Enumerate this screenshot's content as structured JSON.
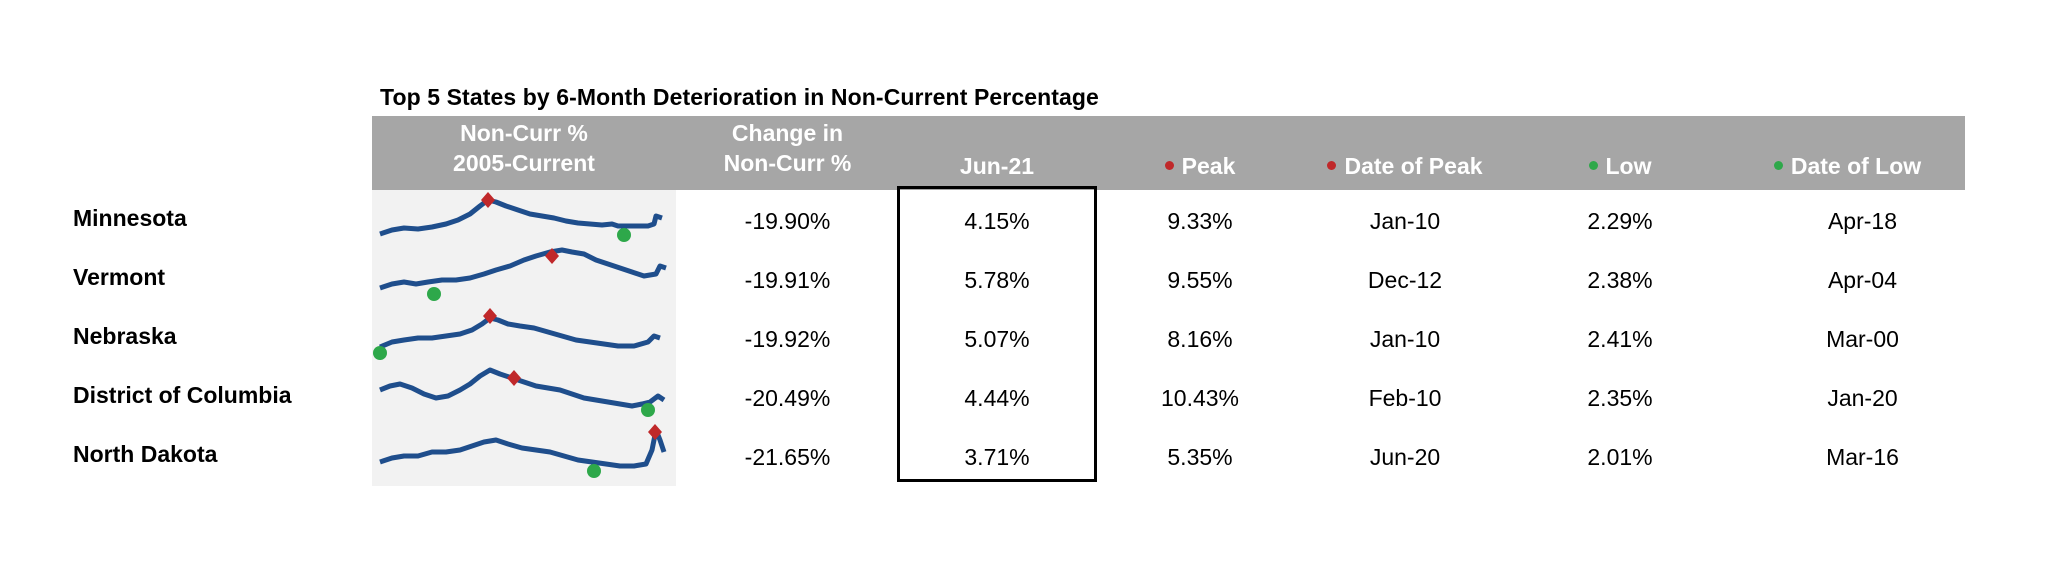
{
  "title": "Top 5 States by 6-Month Deterioration in Non-Current Percentage",
  "headers": {
    "sparkline": [
      "Non-Curr %",
      "2005-Current"
    ],
    "change": [
      "Change in",
      "Non-Curr %"
    ],
    "current": "Jun-21",
    "peak": "Peak",
    "date_of_peak": "Date of Peak",
    "low": "Low",
    "date_of_low": "Date of Low"
  },
  "colors": {
    "header_bg": "#a6a6a6",
    "sparkline_line": "#1f4e8c",
    "peak_marker": "#c0282a",
    "low_marker": "#2ea84a",
    "sparkline_bg": "#f2f2f2"
  },
  "rows": [
    {
      "state": "Minnesota",
      "change": "-19.90%",
      "current": "4.15%",
      "peak": "9.33%",
      "date_of_peak": "Jan-10",
      "low": "2.29%",
      "date_of_low": "Apr-18"
    },
    {
      "state": "Vermont",
      "change": "-19.91%",
      "current": "5.78%",
      "peak": "9.55%",
      "date_of_peak": "Dec-12",
      "low": "2.38%",
      "date_of_low": "Apr-04"
    },
    {
      "state": "Nebraska",
      "change": "-19.92%",
      "current": "5.07%",
      "peak": "8.16%",
      "date_of_peak": "Jan-10",
      "low": "2.41%",
      "date_of_low": "Mar-00"
    },
    {
      "state": "District of Columbia",
      "change": "-20.49%",
      "current": "4.44%",
      "peak": "10.43%",
      "date_of_peak": "Feb-10",
      "low": "2.35%",
      "date_of_low": "Jan-20"
    },
    {
      "state": "North Dakota",
      "change": "-21.65%",
      "current": "3.71%",
      "peak": "5.35%",
      "date_of_peak": "Jun-20",
      "low": "2.01%",
      "date_of_low": "Mar-16"
    }
  ]
}
